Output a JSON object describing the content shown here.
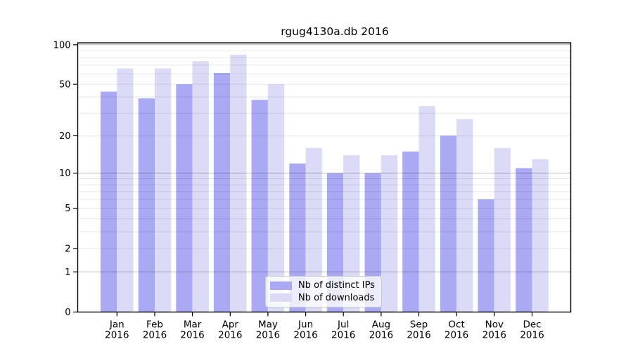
{
  "chart_data": {
    "type": "bar",
    "title": "rgug4130a.db 2016",
    "categories": [
      "Jan",
      "Feb",
      "Mar",
      "Apr",
      "May",
      "Jun",
      "Jul",
      "Aug",
      "Sep",
      "Oct",
      "Nov",
      "Dec"
    ],
    "x_year_label": "2016",
    "series": [
      {
        "name": "Nb of distinct IPs",
        "color": "#a9a9f4",
        "values": [
          44,
          39,
          50,
          61,
          38,
          12,
          10,
          10,
          15,
          20,
          6,
          11
        ]
      },
      {
        "name": "Nb of downloads",
        "color": "#dbdbf8",
        "values": [
          66,
          66,
          75,
          84,
          50,
          16,
          14,
          14,
          34,
          27,
          16,
          13
        ]
      }
    ],
    "yscale": "log1p",
    "ylim": [
      0,
      100
    ],
    "yticks": [
      0,
      1,
      2,
      5,
      10,
      20,
      50,
      100
    ],
    "gridlines_major": [
      1,
      10,
      100
    ],
    "gridlines_minor": [
      2,
      3,
      4,
      5,
      6,
      7,
      8,
      9,
      20,
      30,
      40,
      50,
      60,
      70,
      80,
      90
    ],
    "legend_position": "lower center",
    "axis_color": "#000000",
    "background_color": "#ffffff"
  }
}
